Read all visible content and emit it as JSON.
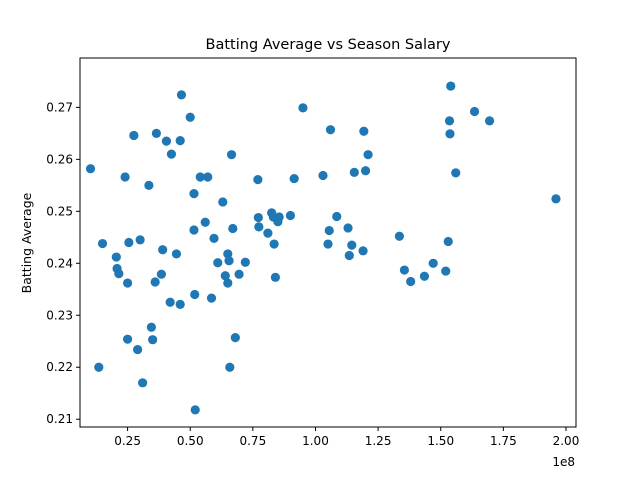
{
  "chart_data": {
    "type": "scatter",
    "title": "Batting Average vs Season Salary",
    "xlabel": "",
    "ylabel": "Batting Average",
    "x_offset_label": "1e8",
    "xlim": [
      6000000,
      204000000
    ],
    "ylim": [
      0.2085,
      0.2795
    ],
    "x_ticks": [
      {
        "value": 25000000,
        "label": "0.25"
      },
      {
        "value": 50000000,
        "label": "0.50"
      },
      {
        "value": 75000000,
        "label": "0.75"
      },
      {
        "value": 100000000,
        "label": "1.00"
      },
      {
        "value": 125000000,
        "label": "1.25"
      },
      {
        "value": 150000000,
        "label": "1.50"
      },
      {
        "value": 175000000,
        "label": "1.75"
      },
      {
        "value": 200000000,
        "label": "2.00"
      }
    ],
    "y_ticks": [
      {
        "value": 0.21,
        "label": "0.21"
      },
      {
        "value": 0.22,
        "label": "0.22"
      },
      {
        "value": 0.23,
        "label": "0.23"
      },
      {
        "value": 0.24,
        "label": "0.24"
      },
      {
        "value": 0.25,
        "label": "0.25"
      },
      {
        "value": 0.26,
        "label": "0.26"
      },
      {
        "value": 0.27,
        "label": "0.27"
      }
    ],
    "grid": false,
    "marker_color": "#1f77b4",
    "series": [
      {
        "points": [
          [
            10200000,
            0.2582
          ],
          [
            13500000,
            0.22
          ],
          [
            15000000,
            0.2438
          ],
          [
            20500000,
            0.2412
          ],
          [
            20800000,
            0.239
          ],
          [
            21500000,
            0.238
          ],
          [
            24000000,
            0.2566
          ],
          [
            25000000,
            0.2362
          ],
          [
            25000000,
            0.2254
          ],
          [
            25500000,
            0.244
          ],
          [
            27500000,
            0.2646
          ],
          [
            29000000,
            0.2234
          ],
          [
            30000000,
            0.2445
          ],
          [
            31000000,
            0.217
          ],
          [
            33500000,
            0.255
          ],
          [
            34500000,
            0.2277
          ],
          [
            35000000,
            0.2253
          ],
          [
            36000000,
            0.2364
          ],
          [
            36500000,
            0.265
          ],
          [
            38500000,
            0.2379
          ],
          [
            39000000,
            0.2426
          ],
          [
            40500000,
            0.2635
          ],
          [
            42000000,
            0.2325
          ],
          [
            42500000,
            0.261
          ],
          [
            44500000,
            0.2418
          ],
          [
            46000000,
            0.2636
          ],
          [
            46000000,
            0.2321
          ],
          [
            46500000,
            0.2724
          ],
          [
            50000000,
            0.2681
          ],
          [
            51500000,
            0.2534
          ],
          [
            51500000,
            0.2464
          ],
          [
            51800000,
            0.234
          ],
          [
            52000000,
            0.2118
          ],
          [
            54000000,
            0.2566
          ],
          [
            56000000,
            0.2479
          ],
          [
            57000000,
            0.2566
          ],
          [
            58500000,
            0.2333
          ],
          [
            59500000,
            0.2448
          ],
          [
            61000000,
            0.2401
          ],
          [
            63000000,
            0.2518
          ],
          [
            64000000,
            0.2376
          ],
          [
            65000000,
            0.2418
          ],
          [
            65000000,
            0.2362
          ],
          [
            65500000,
            0.2405
          ],
          [
            65800000,
            0.22
          ],
          [
            66500000,
            0.2609
          ],
          [
            67000000,
            0.2467
          ],
          [
            68000000,
            0.2257
          ],
          [
            69500000,
            0.2379
          ],
          [
            72000000,
            0.2402
          ],
          [
            77000000,
            0.2561
          ],
          [
            77200000,
            0.2488
          ],
          [
            77400000,
            0.247
          ],
          [
            81000000,
            0.2458
          ],
          [
            82500000,
            0.2497
          ],
          [
            83200000,
            0.2489
          ],
          [
            83500000,
            0.2437
          ],
          [
            84000000,
            0.2373
          ],
          [
            85000000,
            0.248
          ],
          [
            85500000,
            0.2489
          ],
          [
            90000000,
            0.2492
          ],
          [
            91500000,
            0.2563
          ],
          [
            95000000,
            0.2699
          ],
          [
            103000000,
            0.2569
          ],
          [
            105000000,
            0.2437
          ],
          [
            105500000,
            0.2463
          ],
          [
            106000000,
            0.2657
          ],
          [
            108500000,
            0.249
          ],
          [
            113000000,
            0.2468
          ],
          [
            113500000,
            0.2415
          ],
          [
            114500000,
            0.2435
          ],
          [
            115500000,
            0.2575
          ],
          [
            119000000,
            0.2424
          ],
          [
            119300000,
            0.2654
          ],
          [
            120000000,
            0.2578
          ],
          [
            121000000,
            0.2609
          ],
          [
            133500000,
            0.2452
          ],
          [
            135500000,
            0.2387
          ],
          [
            138000000,
            0.2365
          ],
          [
            143500000,
            0.2375
          ],
          [
            147000000,
            0.24
          ],
          [
            152000000,
            0.2385
          ],
          [
            153000000,
            0.2442
          ],
          [
            153500000,
            0.2674
          ],
          [
            153700000,
            0.2649
          ],
          [
            154000000,
            0.2741
          ],
          [
            156000000,
            0.2574
          ],
          [
            163500000,
            0.2692
          ],
          [
            169500000,
            0.2674
          ],
          [
            196000000,
            0.2524
          ]
        ]
      }
    ]
  }
}
